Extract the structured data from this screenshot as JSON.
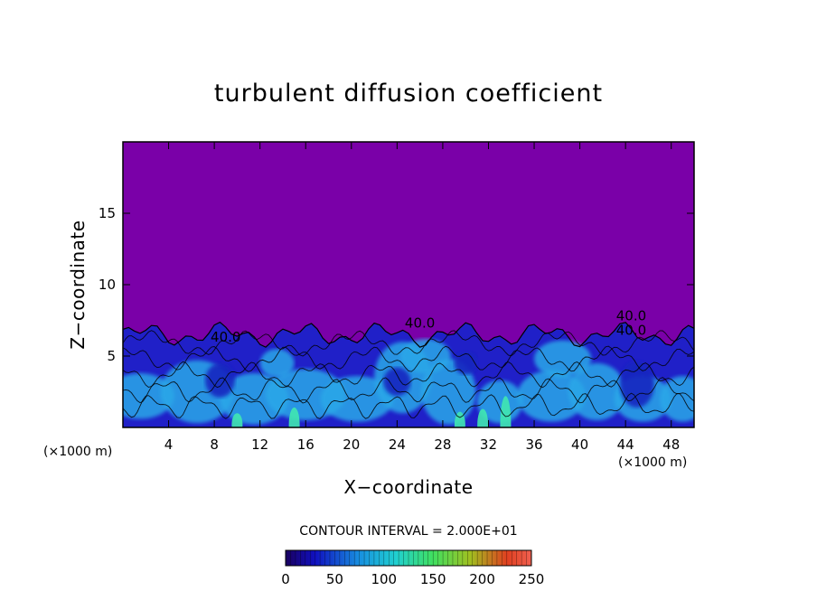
{
  "chart_data": {
    "type": "heatmap",
    "title": "turbulent diffusion coefficient",
    "xlabel": "X−coordinate",
    "ylabel": "Z−coordinate",
    "x_unit": "(×1000 m)",
    "x_unit_right": "(×1000 m)",
    "xlim": [
      0,
      50
    ],
    "ylim": [
      0,
      20
    ],
    "x_ticks": [
      4,
      8,
      12,
      16,
      20,
      24,
      28,
      32,
      36,
      40,
      44,
      48
    ],
    "y_ticks": [
      5,
      10,
      15
    ],
    "contour_interval_label": "CONTOUR INTERVAL = 2.000E+01",
    "contour_labels": [
      {
        "text": "40.0",
        "x": 9.0,
        "z": 6.0
      },
      {
        "text": "40.0",
        "x": 26.0,
        "z": 7.0
      },
      {
        "text": "40.0",
        "x": 44.5,
        "z": 6.5
      },
      {
        "text": "40.0",
        "x": 44.5,
        "z": 7.5
      }
    ],
    "colorbar": {
      "min": 0,
      "max": 250,
      "ticks": [
        0,
        50,
        100,
        150,
        200,
        250
      ]
    },
    "background_value": 0,
    "turbulent_layer_top_z": 6.5,
    "colors": {
      "background": "#7a00a8",
      "low": "#2020c8",
      "mid": "#2aa8e8",
      "high": "#40e8b0"
    }
  }
}
